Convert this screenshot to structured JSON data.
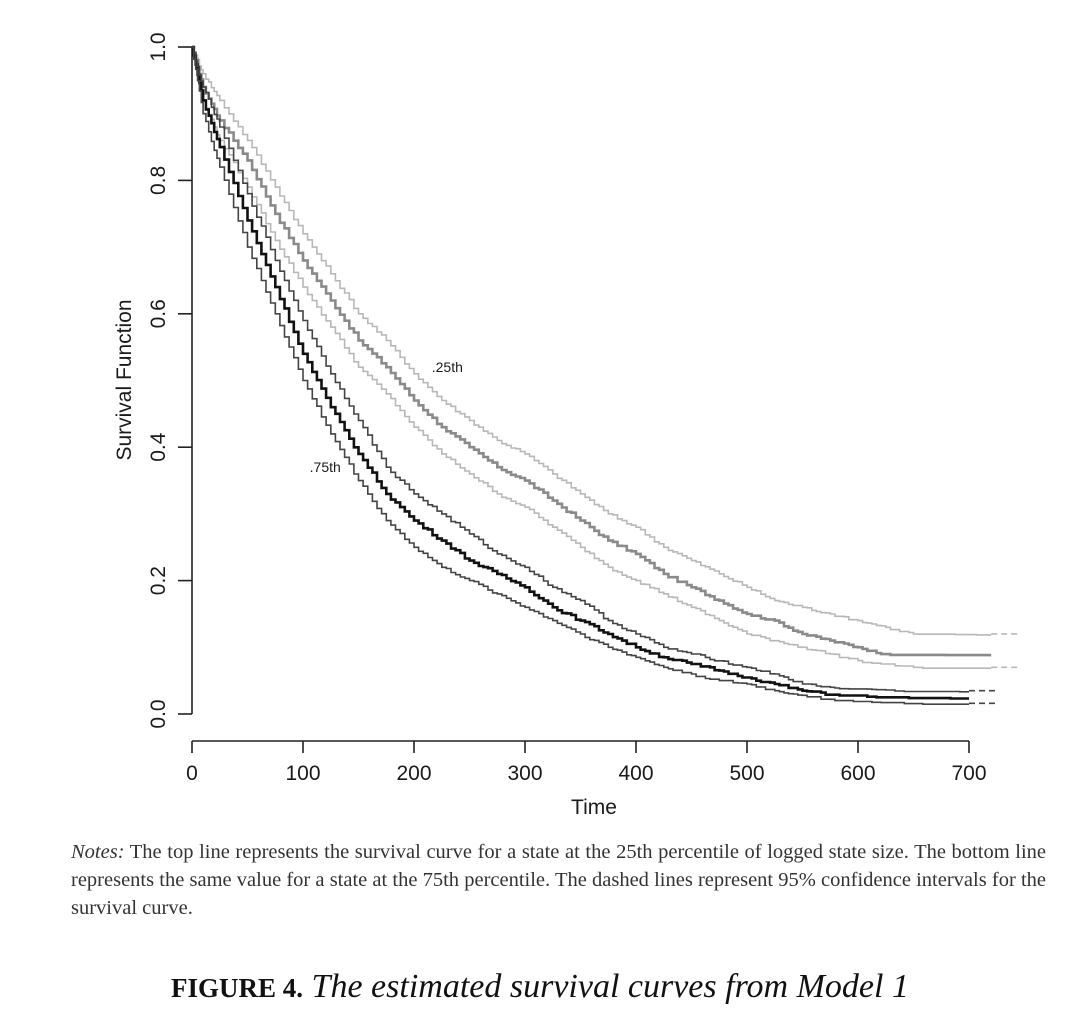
{
  "chart_data": {
    "type": "line",
    "step": true,
    "xlabel": "Time",
    "ylabel": "Survival Function",
    "xlim": [
      0,
      700
    ],
    "ylim": [
      0,
      1
    ],
    "x_ticks": [
      "0",
      "100",
      "200",
      "300",
      "400",
      "500",
      "600",
      "700"
    ],
    "y_ticks": [
      "0.0",
      "0.2",
      "0.4",
      "0.6",
      "0.8",
      "1.0"
    ],
    "grid": false,
    "legend": "none",
    "annotations": [
      {
        "text": ".25th",
        "x": 225,
        "y": 0.52
      },
      {
        "text": ".75th",
        "x": 115,
        "y": 0.37
      }
    ],
    "series": [
      {
        "name": ".25th",
        "role": "estimate",
        "color": "#8a8a8a",
        "x": [
          0,
          10,
          25,
          50,
          75,
          100,
          125,
          150,
          175,
          200,
          225,
          250,
          275,
          300,
          325,
          350,
          375,
          400,
          425,
          450,
          475,
          500,
          525,
          550,
          575,
          600,
          625,
          650,
          675,
          700,
          720
        ],
        "y": [
          1.0,
          0.94,
          0.89,
          0.83,
          0.75,
          0.68,
          0.62,
          0.56,
          0.52,
          0.47,
          0.43,
          0.4,
          0.37,
          0.35,
          0.32,
          0.29,
          0.26,
          0.24,
          0.21,
          0.19,
          0.17,
          0.15,
          0.14,
          0.12,
          0.11,
          0.1,
          0.09,
          0.09,
          0.09,
          0.09,
          0.09
        ]
      },
      {
        "role": "upper-ci",
        "color": "#b8b8b8",
        "x": [
          0,
          10,
          25,
          50,
          75,
          100,
          125,
          150,
          175,
          200,
          225,
          250,
          275,
          300,
          325,
          350,
          375,
          400,
          425,
          450,
          475,
          500,
          525,
          550,
          575,
          600,
          625,
          650,
          675,
          700,
          720
        ],
        "y": [
          1.0,
          0.96,
          0.92,
          0.86,
          0.79,
          0.72,
          0.66,
          0.6,
          0.56,
          0.51,
          0.47,
          0.44,
          0.41,
          0.39,
          0.36,
          0.33,
          0.3,
          0.28,
          0.25,
          0.23,
          0.21,
          0.19,
          0.17,
          0.16,
          0.15,
          0.14,
          0.13,
          0.12,
          0.12,
          0.12,
          0.12
        ]
      },
      {
        "role": "lower-ci",
        "color": "#b8b8b8",
        "x": [
          0,
          10,
          25,
          50,
          75,
          100,
          125,
          150,
          175,
          200,
          225,
          250,
          275,
          300,
          325,
          350,
          375,
          400,
          425,
          450,
          475,
          500,
          525,
          550,
          575,
          600,
          625,
          650,
          675,
          700,
          720
        ],
        "y": [
          1.0,
          0.92,
          0.86,
          0.79,
          0.71,
          0.64,
          0.58,
          0.52,
          0.48,
          0.43,
          0.39,
          0.36,
          0.33,
          0.31,
          0.28,
          0.25,
          0.22,
          0.2,
          0.18,
          0.16,
          0.14,
          0.12,
          0.11,
          0.1,
          0.09,
          0.08,
          0.075,
          0.07,
          0.07,
          0.07,
          0.07
        ]
      },
      {
        "name": ".75th",
        "role": "estimate",
        "color": "#111111",
        "x": [
          0,
          10,
          25,
          50,
          75,
          100,
          125,
          150,
          175,
          200,
          225,
          250,
          275,
          300,
          325,
          350,
          375,
          400,
          425,
          450,
          475,
          500,
          525,
          550,
          575,
          600,
          625,
          650,
          675,
          700
        ],
        "y": [
          1.0,
          0.92,
          0.85,
          0.74,
          0.64,
          0.54,
          0.46,
          0.39,
          0.33,
          0.29,
          0.26,
          0.23,
          0.21,
          0.19,
          0.16,
          0.14,
          0.12,
          0.1,
          0.085,
          0.075,
          0.065,
          0.055,
          0.045,
          0.035,
          0.03,
          0.028,
          0.026,
          0.025,
          0.025,
          0.025
        ]
      },
      {
        "role": "upper-ci",
        "color": "#444444",
        "x": [
          0,
          10,
          25,
          50,
          75,
          100,
          125,
          150,
          175,
          200,
          225,
          250,
          275,
          300,
          325,
          350,
          375,
          400,
          425,
          450,
          475,
          500,
          525,
          550,
          575,
          600,
          625,
          650,
          675,
          700
        ],
        "y": [
          1.0,
          0.94,
          0.88,
          0.78,
          0.68,
          0.59,
          0.51,
          0.44,
          0.37,
          0.33,
          0.3,
          0.27,
          0.24,
          0.22,
          0.19,
          0.17,
          0.14,
          0.12,
          0.1,
          0.09,
          0.08,
          0.07,
          0.06,
          0.045,
          0.04,
          0.038,
          0.036,
          0.035,
          0.035,
          0.035
        ]
      },
      {
        "role": "lower-ci",
        "color": "#444444",
        "x": [
          0,
          10,
          25,
          50,
          75,
          100,
          125,
          150,
          175,
          200,
          225,
          250,
          275,
          300,
          325,
          350,
          375,
          400,
          425,
          450,
          475,
          500,
          525,
          550,
          575,
          600,
          625,
          650,
          675,
          700
        ],
        "y": [
          1.0,
          0.9,
          0.82,
          0.7,
          0.6,
          0.5,
          0.42,
          0.35,
          0.29,
          0.25,
          0.22,
          0.2,
          0.18,
          0.16,
          0.14,
          0.12,
          0.1,
          0.085,
          0.07,
          0.06,
          0.05,
          0.045,
          0.035,
          0.028,
          0.022,
          0.02,
          0.018,
          0.016,
          0.016,
          0.016
        ]
      }
    ]
  },
  "notes": {
    "label": "Notes:",
    "text": "The top line represents the survival curve for a state at the 25th percentile of logged state size. The bottom line represents the same value for a state at the 75th percentile. The dashed lines represent 95% confidence intervals for the survival curve."
  },
  "caption": {
    "label": "FIGURE 4.",
    "title": "The estimated survival curves from Model 1"
  }
}
